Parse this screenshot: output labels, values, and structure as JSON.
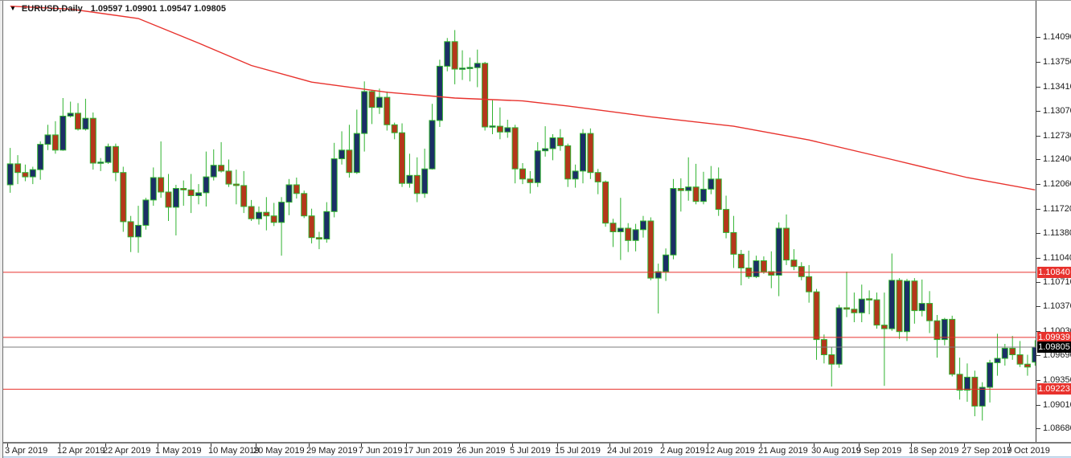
{
  "title": {
    "dropdown_icon": "▼",
    "symbol_period": "EURUSD,Daily",
    "ohlc_text": "1.09597 1.09901 1.09547 1.09805"
  },
  "colors": {
    "background": "#ffffff",
    "bull_body": "#1b2f66",
    "bear_body": "#b5371b",
    "wick_outline": "#30b330",
    "moving_average": "#e8322d",
    "level_line": "#e8322d",
    "level_label_bg": "#e8322d",
    "current_price_line": "#7b7b7b",
    "current_price_label_bg": "#000000",
    "axis_text": "#1c1c1c"
  },
  "chart_data": {
    "type": "candlestick",
    "symbol": "EURUSD",
    "timeframe": "Daily",
    "current_bar": {
      "open": 1.09597,
      "high": 1.09901,
      "low": 1.09547,
      "close": 1.09805
    },
    "y_axis": {
      "ticks": [
        "1.14090",
        "1.13750",
        "1.13410",
        "1.13070",
        "1.12730",
        "1.12400",
        "1.12060",
        "1.11720",
        "1.11380",
        "1.11040",
        "1.10710",
        "1.10370",
        "1.10030",
        "1.09690",
        "1.09350",
        "1.09010",
        "1.08680"
      ],
      "range_top": 1.14594,
      "range_bottom": 1.08494,
      "side": "right"
    },
    "x_axis": {
      "labels": [
        {
          "i": 0,
          "t": "3 Apr 2019"
        },
        {
          "i": 7,
          "t": "12 Apr 2019"
        },
        {
          "i": 13,
          "t": "22 Apr 2019"
        },
        {
          "i": 20,
          "t": "1 May 2019"
        },
        {
          "i": 27,
          "t": "10 May 2019"
        },
        {
          "i": 33,
          "t": "20 May 2019"
        },
        {
          "i": 40,
          "t": "29 May 2019"
        },
        {
          "i": 47,
          "t": "7 Jun 2019"
        },
        {
          "i": 53,
          "t": "17 Jun 2019"
        },
        {
          "i": 60,
          "t": "26 Jun 2019"
        },
        {
          "i": 67,
          "t": "5 Jul 2019"
        },
        {
          "i": 73,
          "t": "15 Jul 2019"
        },
        {
          "i": 80,
          "t": "24 Jul 2019"
        },
        {
          "i": 87,
          "t": "2 Aug 2019"
        },
        {
          "i": 93,
          "t": "12 Aug 2019"
        },
        {
          "i": 100,
          "t": "21 Aug 2019"
        },
        {
          "i": 107,
          "t": "30 Aug 2019"
        },
        {
          "i": 113,
          "t": "9 Sep 2019"
        },
        {
          "i": 120,
          "t": "18 Sep 2019"
        },
        {
          "i": 127,
          "t": "27 Sep 2019"
        },
        {
          "i": 133,
          "t": "7 Oct 2019"
        }
      ]
    },
    "horizontal_levels": [
      {
        "value": 1.1084,
        "label": "1.10840"
      },
      {
        "value": 1.09939,
        "label": "1.09939"
      },
      {
        "value": 1.09223,
        "label": "1.09223"
      }
    ],
    "current_price": {
      "value": 1.09805,
      "label": "1.09805"
    },
    "moving_average": {
      "points": [
        [
          0,
          1.1452
        ],
        [
          8,
          1.1448
        ],
        [
          17,
          1.1435
        ],
        [
          25,
          1.1401
        ],
        [
          32,
          1.137
        ],
        [
          40,
          1.1347
        ],
        [
          50,
          1.1333
        ],
        [
          59,
          1.1325
        ],
        [
          68,
          1.1321
        ],
        [
          74,
          1.1314
        ],
        [
          85,
          1.1299
        ],
        [
          96,
          1.1286
        ],
        [
          106,
          1.1267
        ],
        [
          117,
          1.124
        ],
        [
          127,
          1.1215
        ],
        [
          136,
          1.1198
        ]
      ]
    },
    "candles_ohlc": [
      [
        1.1205,
        1.1256,
        1.1194,
        1.1234
      ],
      [
        1.1234,
        1.1246,
        1.1206,
        1.1222
      ],
      [
        1.1222,
        1.1233,
        1.121,
        1.1216
      ],
      [
        1.1216,
        1.123,
        1.1206,
        1.1226
      ],
      [
        1.1226,
        1.1265,
        1.1212,
        1.1261
      ],
      [
        1.1261,
        1.1288,
        1.1253,
        1.1274
      ],
      [
        1.1274,
        1.1293,
        1.1248,
        1.1253
      ],
      [
        1.1253,
        1.1325,
        1.1252,
        1.13
      ],
      [
        1.13,
        1.132,
        1.1298,
        1.1304
      ],
      [
        1.1304,
        1.1318,
        1.128,
        1.1282
      ],
      [
        1.1282,
        1.1324,
        1.128,
        1.1297
      ],
      [
        1.1297,
        1.1305,
        1.1226,
        1.1235
      ],
      [
        1.1235,
        1.1242,
        1.1224,
        1.1236
      ],
      [
        1.1236,
        1.1262,
        1.1234,
        1.1258
      ],
      [
        1.1258,
        1.1262,
        1.121,
        1.1222
      ],
      [
        1.1222,
        1.123,
        1.114,
        1.1154
      ],
      [
        1.1154,
        1.1162,
        1.1112,
        1.1133
      ],
      [
        1.1133,
        1.1176,
        1.1111,
        1.1149
      ],
      [
        1.1149,
        1.1187,
        1.1143,
        1.1184
      ],
      [
        1.1184,
        1.1229,
        1.1176,
        1.1215
      ],
      [
        1.1215,
        1.1265,
        1.1187,
        1.1195
      ],
      [
        1.1195,
        1.122,
        1.1155,
        1.1174
      ],
      [
        1.1174,
        1.1205,
        1.1135,
        1.12
      ],
      [
        1.12,
        1.1211,
        1.1176,
        1.1198
      ],
      [
        1.1198,
        1.122,
        1.1166,
        1.119
      ],
      [
        1.119,
        1.1206,
        1.1178,
        1.1194
      ],
      [
        1.1194,
        1.1251,
        1.1175,
        1.1216
      ],
      [
        1.1216,
        1.1254,
        1.1211,
        1.1232
      ],
      [
        1.1232,
        1.1264,
        1.1222,
        1.1224
      ],
      [
        1.1224,
        1.124,
        1.1202,
        1.1206
      ],
      [
        1.1206,
        1.1226,
        1.1178,
        1.1204
      ],
      [
        1.1204,
        1.1224,
        1.1166,
        1.1175
      ],
      [
        1.1175,
        1.1184,
        1.1155,
        1.1158
      ],
      [
        1.1158,
        1.1175,
        1.115,
        1.1167
      ],
      [
        1.1167,
        1.1188,
        1.1142,
        1.1162
      ],
      [
        1.1162,
        1.118,
        1.1148,
        1.1153
      ],
      [
        1.1153,
        1.1188,
        1.1107,
        1.1181
      ],
      [
        1.1181,
        1.1213,
        1.1163,
        1.1205
      ],
      [
        1.1205,
        1.1215,
        1.1186,
        1.1193
      ],
      [
        1.1193,
        1.1197,
        1.1159,
        1.1162
      ],
      [
        1.1162,
        1.1172,
        1.1124,
        1.1132
      ],
      [
        1.1132,
        1.114,
        1.1116,
        1.113
      ],
      [
        1.113,
        1.1181,
        1.1125,
        1.1168
      ],
      [
        1.1168,
        1.1263,
        1.116,
        1.1241
      ],
      [
        1.1241,
        1.1279,
        1.1233,
        1.1253
      ],
      [
        1.1253,
        1.1288,
        1.1215,
        1.1222
      ],
      [
        1.1222,
        1.1309,
        1.122,
        1.1276
      ],
      [
        1.1276,
        1.1348,
        1.1251,
        1.1334
      ],
      [
        1.1334,
        1.1336,
        1.1289,
        1.1312
      ],
      [
        1.1312,
        1.1338,
        1.1303,
        1.1326
      ],
      [
        1.1326,
        1.1334,
        1.128,
        1.1288
      ],
      [
        1.1288,
        1.1291,
        1.1268,
        1.1277
      ],
      [
        1.1277,
        1.129,
        1.1202,
        1.1207
      ],
      [
        1.1207,
        1.1248,
        1.1201,
        1.1218
      ],
      [
        1.1218,
        1.1243,
        1.1181,
        1.1193
      ],
      [
        1.1193,
        1.1255,
        1.1187,
        1.1227
      ],
      [
        1.1227,
        1.1317,
        1.1226,
        1.1294
      ],
      [
        1.1294,
        1.1378,
        1.1285,
        1.1369
      ],
      [
        1.1369,
        1.1408,
        1.1362,
        1.1403
      ],
      [
        1.1403,
        1.1419,
        1.1344,
        1.1365
      ],
      [
        1.1365,
        1.1391,
        1.135,
        1.1366
      ],
      [
        1.1366,
        1.1381,
        1.1348,
        1.1367
      ],
      [
        1.1367,
        1.1392,
        1.134,
        1.1373
      ],
      [
        1.1373,
        1.1375,
        1.128,
        1.1285
      ],
      [
        1.1285,
        1.1322,
        1.1275,
        1.1286
      ],
      [
        1.1286,
        1.1312,
        1.1268,
        1.1278
      ],
      [
        1.1278,
        1.1295,
        1.127,
        1.1284
      ],
      [
        1.1284,
        1.1288,
        1.1207,
        1.1227
      ],
      [
        1.1227,
        1.1235,
        1.1206,
        1.1213
      ],
      [
        1.1213,
        1.1224,
        1.1193,
        1.1208
      ],
      [
        1.1208,
        1.1264,
        1.1202,
        1.1252
      ],
      [
        1.1252,
        1.1286,
        1.1244,
        1.1255
      ],
      [
        1.1255,
        1.1275,
        1.1239,
        1.127
      ],
      [
        1.127,
        1.1282,
        1.1252,
        1.1259
      ],
      [
        1.1259,
        1.1262,
        1.1202,
        1.1213
      ],
      [
        1.1213,
        1.1233,
        1.1201,
        1.1224
      ],
      [
        1.1224,
        1.1282,
        1.1207,
        1.1276
      ],
      [
        1.1276,
        1.1283,
        1.1213,
        1.1222
      ],
      [
        1.1222,
        1.1227,
        1.1192,
        1.1209
      ],
      [
        1.1209,
        1.1211,
        1.1147,
        1.1152
      ],
      [
        1.1152,
        1.1158,
        1.1119,
        1.114
      ],
      [
        1.114,
        1.1187,
        1.1101,
        1.1145
      ],
      [
        1.1145,
        1.1152,
        1.1112,
        1.1128
      ],
      [
        1.1128,
        1.1151,
        1.1113,
        1.1143
      ],
      [
        1.1143,
        1.1162,
        1.1132,
        1.1155
      ],
      [
        1.1155,
        1.116,
        1.1073,
        1.1076
      ],
      [
        1.1076,
        1.1096,
        1.1027,
        1.1085
      ],
      [
        1.1085,
        1.1117,
        1.1072,
        1.1108
      ],
      [
        1.1108,
        1.1213,
        1.1102,
        1.12
      ],
      [
        1.12,
        1.1214,
        1.1168,
        1.1197
      ],
      [
        1.1197,
        1.1243,
        1.1183,
        1.1202
      ],
      [
        1.1202,
        1.1234,
        1.1178,
        1.1182
      ],
      [
        1.1182,
        1.1223,
        1.1178,
        1.1199
      ],
      [
        1.1199,
        1.1231,
        1.1192,
        1.1213
      ],
      [
        1.1213,
        1.1229,
        1.1162,
        1.1171
      ],
      [
        1.1171,
        1.119,
        1.1131,
        1.1139
      ],
      [
        1.1139,
        1.1162,
        1.109,
        1.1109
      ],
      [
        1.1109,
        1.1115,
        1.1066,
        1.109
      ],
      [
        1.109,
        1.1114,
        1.1075,
        1.1078
      ],
      [
        1.1078,
        1.1107,
        1.1076,
        1.11
      ],
      [
        1.11,
        1.1106,
        1.1082,
        1.1085
      ],
      [
        1.1085,
        1.1113,
        1.1062,
        1.108
      ],
      [
        1.108,
        1.1153,
        1.1051,
        1.1145
      ],
      [
        1.1145,
        1.1164,
        1.1094,
        1.1101
      ],
      [
        1.1101,
        1.1116,
        1.1087,
        1.1092
      ],
      [
        1.1092,
        1.1098,
        1.1073,
        1.1078
      ],
      [
        1.1078,
        1.1094,
        1.1042,
        1.1057
      ],
      [
        1.1057,
        1.1061,
        1.0963,
        1.0991
      ],
      [
        1.0991,
        1.0998,
        1.0958,
        1.097
      ],
      [
        1.097,
        1.0981,
        1.0926,
        1.0957
      ],
      [
        1.0957,
        1.1039,
        1.0952,
        1.1035
      ],
      [
        1.1035,
        1.1085,
        1.1022,
        1.1033
      ],
      [
        1.1033,
        1.1056,
        1.1015,
        1.1028
      ],
      [
        1.1028,
        1.1067,
        1.1015,
        1.1047
      ],
      [
        1.1047,
        1.1059,
        1.1026,
        1.1046
      ],
      [
        1.1046,
        1.1056,
        1.1006,
        1.1011
      ],
      [
        1.1011,
        1.1056,
        1.0927,
        1.1006
      ],
      [
        1.1006,
        1.111,
        1.1003,
        1.1073
      ],
      [
        1.1073,
        1.1076,
        1.0992,
        1.1002
      ],
      [
        1.1002,
        1.1075,
        1.0989,
        1.1072
      ],
      [
        1.1072,
        1.1076,
        1.1013,
        1.1031
      ],
      [
        1.1031,
        1.1074,
        1.1023,
        1.1041
      ],
      [
        1.1041,
        1.1058,
        1.1,
        1.1017
      ],
      [
        1.1017,
        1.1025,
        1.0966,
        1.0991
      ],
      [
        1.0991,
        1.1021,
        1.0983,
        1.1019
      ],
      [
        1.1019,
        1.1024,
        1.094,
        1.0943
      ],
      [
        1.0943,
        1.0966,
        1.0908,
        1.0921
      ],
      [
        1.0921,
        1.0958,
        1.0905,
        1.0939
      ],
      [
        1.0939,
        1.0948,
        1.0885,
        1.0899
      ],
      [
        1.0899,
        1.0932,
        1.0879,
        1.0925
      ],
      [
        1.0925,
        1.0963,
        1.0904,
        1.0959
      ],
      [
        1.0959,
        1.0999,
        1.0941,
        1.0965
      ],
      [
        1.0965,
        1.0985,
        1.0955,
        1.0979
      ],
      [
        1.0979,
        1.0996,
        1.0963,
        1.097
      ],
      [
        1.097,
        1.0989,
        1.0953,
        1.0957
      ],
      [
        1.0957,
        1.097,
        1.0941,
        1.0953
      ],
      [
        1.09597,
        1.09901,
        1.09547,
        1.09805
      ]
    ]
  }
}
